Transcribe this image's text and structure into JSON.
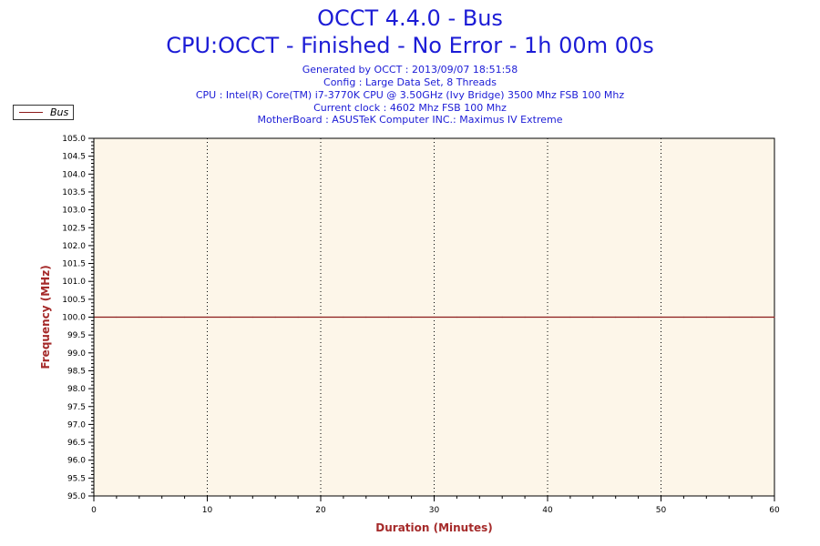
{
  "title": "OCCT 4.4.0 - Bus",
  "subtitle": "CPU:OCCT - Finished - No Error - 1h 00m 00s",
  "info_lines": [
    "Generated by OCCT : 2013/09/07 18:51:58",
    "Config : Large Data Set, 8 Threads",
    "CPU : Intel(R) Core(TM) i7-3770K CPU @ 3.50GHz (Ivy Bridge) 3500 Mhz FSB 100 Mhz",
    "Current clock : 4602 Mhz FSB 100 Mhz",
    "MotherBoard : ASUSTeK Computer INC.: Maximus IV Extreme"
  ],
  "colors": {
    "title": "#1c1cd6",
    "axis_title": "#a52a2a",
    "series": "#8b1a1a",
    "plot_background": "#fdf6e9"
  },
  "chart_data": {
    "type": "line",
    "xlabel": "Duration (Minutes)",
    "ylabel": "Frequency (MHz)",
    "xlim": [
      0,
      60
    ],
    "ylim": [
      95.0,
      105.0
    ],
    "x_ticks": [
      "0",
      "10",
      "20",
      "30",
      "40",
      "50",
      "60"
    ],
    "y_ticks": [
      "95.0",
      "95.5",
      "96.0",
      "96.5",
      "97.0",
      "97.5",
      "98.0",
      "98.5",
      "99.0",
      "99.5",
      "100.0",
      "100.5",
      "101.0",
      "101.5",
      "102.0",
      "102.5",
      "103.0",
      "103.5",
      "104.0",
      "104.5",
      "105.0"
    ],
    "grid": "vertical dotted at major x ticks",
    "legend_position": "top-left",
    "series": [
      {
        "name": "Bus",
        "color": "#8b1a1a",
        "x": [
          0,
          2,
          4,
          6,
          8,
          10,
          12,
          14,
          16,
          18,
          20,
          22,
          24,
          26,
          28,
          30,
          32,
          34,
          36,
          38,
          40,
          42,
          44,
          46,
          48,
          50,
          52,
          54,
          56,
          58,
          60
        ],
        "values": [
          100.0,
          100.0,
          100.0,
          100.0,
          100.0,
          100.0,
          100.0,
          100.0,
          100.0,
          100.0,
          100.0,
          100.0,
          100.0,
          100.0,
          100.0,
          100.0,
          100.0,
          100.0,
          100.0,
          100.0,
          100.0,
          100.0,
          100.0,
          100.0,
          100.0,
          100.0,
          100.0,
          100.0,
          100.0,
          100.0,
          100.0
        ]
      }
    ]
  }
}
